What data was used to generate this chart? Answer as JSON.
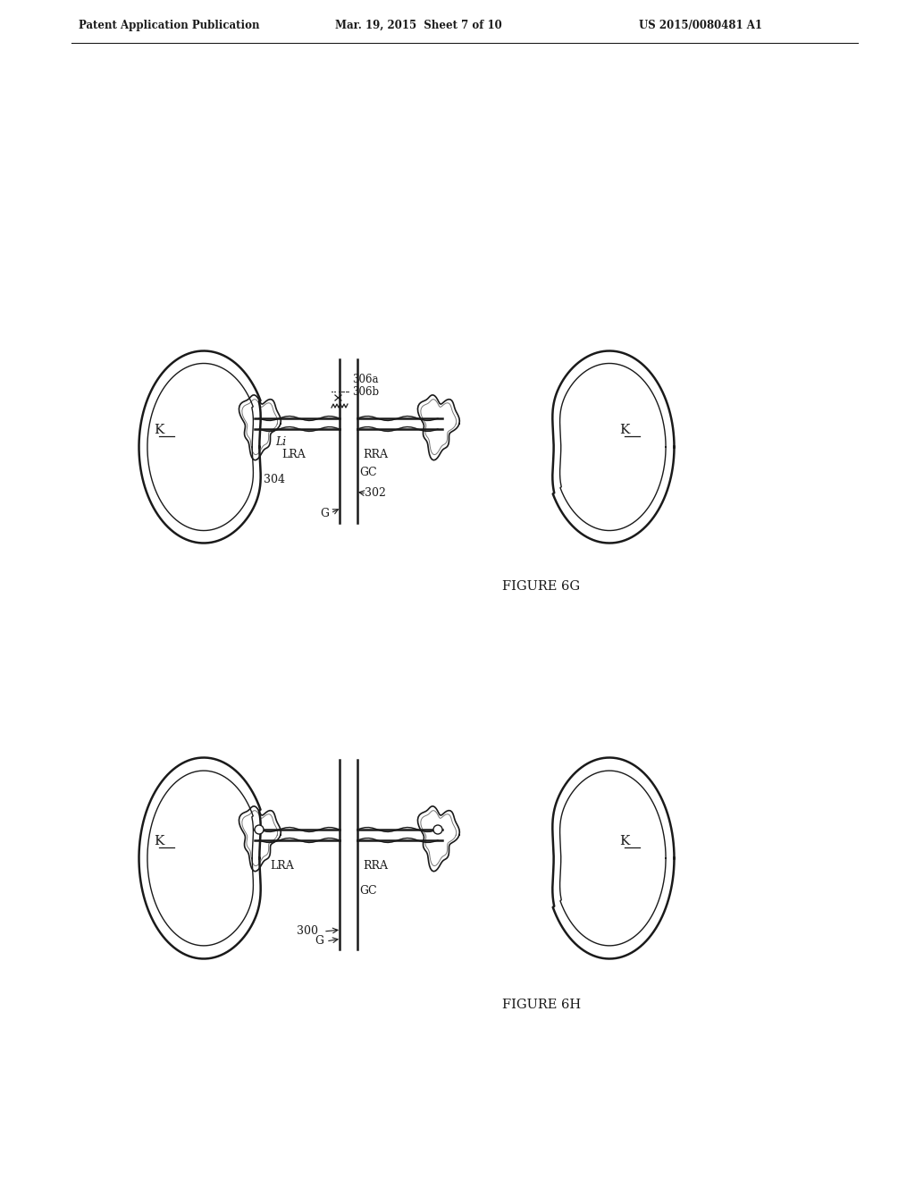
{
  "page_title_left": "Patent Application Publication",
  "page_title_mid": "Mar. 19, 2015  Sheet 7 of 10",
  "page_title_right": "US 2015/0080481 A1",
  "bg_color": "#ffffff",
  "line_color": "#1a1a1a",
  "text_color": "#1a1a1a",
  "header_fontsize": 8.5,
  "label_fontsize": 9,
  "fig_label_fontsize": 10.5
}
